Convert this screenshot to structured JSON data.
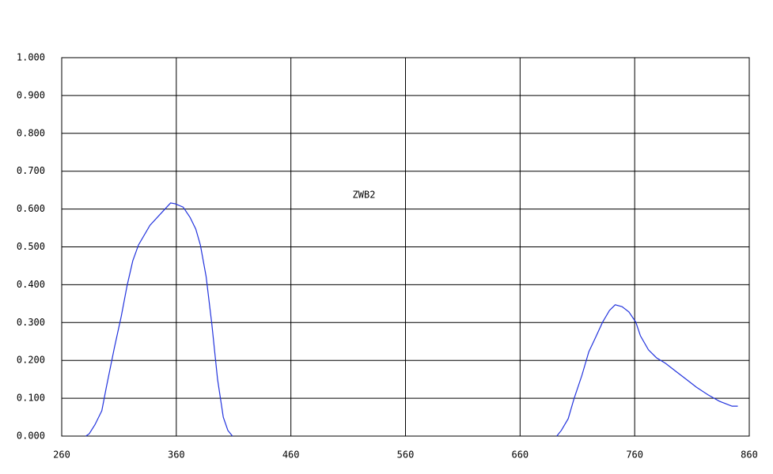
{
  "chart_data": {
    "type": "line",
    "annotation": "ZWB2",
    "x": [
      281,
      284,
      289,
      295,
      299,
      306,
      312,
      317,
      322,
      327,
      337,
      348,
      355,
      359,
      366,
      372,
      377,
      381,
      386,
      391,
      396,
      401,
      405,
      409,
      550,
      692,
      696,
      702,
      707,
      714,
      720,
      725,
      732,
      738,
      743,
      749,
      755,
      761,
      765,
      772,
      779,
      787,
      796,
      805,
      814,
      824,
      834,
      845,
      850
    ],
    "series": [
      {
        "color": "#2233dd",
        "values": [
          0,
          0.006,
          0.03,
          0.067,
          0.13,
          0.234,
          0.317,
          0.397,
          0.463,
          0.505,
          0.557,
          0.593,
          0.616,
          0.614,
          0.605,
          0.578,
          0.547,
          0.505,
          0.422,
          0.296,
          0.15,
          0.05,
          0.015,
          0,
          null,
          0,
          0.015,
          0.046,
          0.098,
          0.161,
          0.223,
          0.255,
          0.301,
          0.332,
          0.347,
          0.342,
          0.328,
          0.301,
          0.265,
          0.228,
          0.207,
          0.192,
          0.171,
          0.15,
          0.129,
          0.109,
          0.092,
          0.079,
          0.079
        ]
      }
    ],
    "xlim": [
      260,
      860
    ],
    "xticks": [
      260,
      360,
      460,
      560,
      660,
      760,
      860
    ],
    "ylim": [
      0,
      1
    ],
    "yticks": [
      {
        "value": 0,
        "label": "0.000"
      },
      {
        "value": 0.1,
        "label": "0.100"
      },
      {
        "value": 0.2,
        "label": "0.200"
      },
      {
        "value": 0.3,
        "label": "0.300"
      },
      {
        "value": 0.4,
        "label": "0.400"
      },
      {
        "value": 0.5,
        "label": "0.500"
      },
      {
        "value": 0.6,
        "label": "0.600"
      },
      {
        "value": 0.7,
        "label": "0.700"
      },
      {
        "value": 0.8,
        "label": "0.800"
      },
      {
        "value": 0.9,
        "label": "0.900"
      },
      {
        "value": 1,
        "label": "1.000"
      }
    ],
    "grid": true
  }
}
